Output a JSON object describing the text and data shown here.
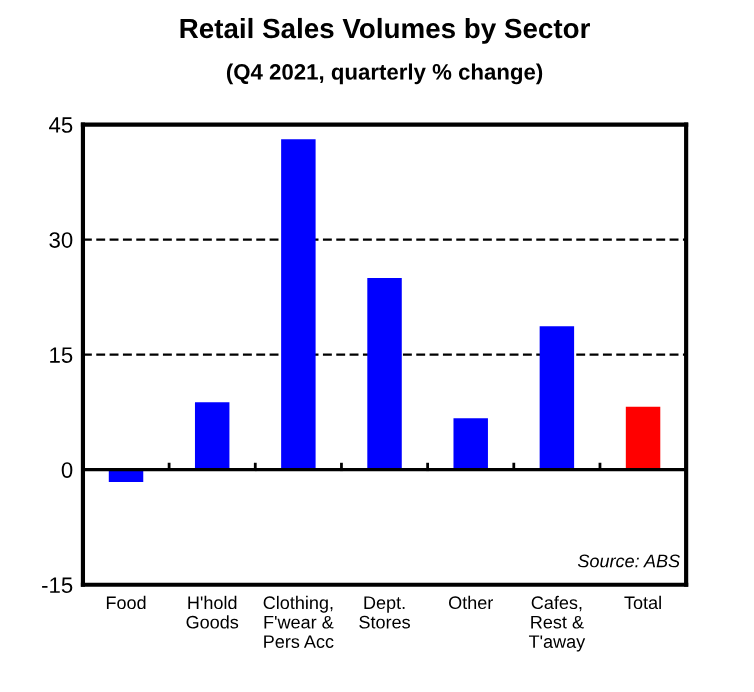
{
  "chart_data": {
    "type": "bar",
    "title": "Retail Sales Volumes by Sector",
    "subtitle": "(Q4 2021, quarterly % change)",
    "categories": [
      "Food",
      "H'hold\nGoods",
      "Clothing,\nF'wear &\nPers Acc",
      "Dept.\nStores",
      "Other",
      "Cafes,\nRest &\nT'away",
      "Total"
    ],
    "values": [
      -1.6,
      8.8,
      43.1,
      25.0,
      6.7,
      18.7,
      8.2
    ],
    "colors": [
      "#0000ff",
      "#0000ff",
      "#0000ff",
      "#0000ff",
      "#0000ff",
      "#0000ff",
      "#ff0000"
    ],
    "ylim": [
      -15,
      45
    ],
    "yticks": [
      -15,
      0,
      15,
      30,
      45
    ],
    "grid": "y",
    "ref_lines": [
      {
        "axis": "y",
        "value": 0,
        "color": "#000000",
        "line_style": "solid"
      }
    ],
    "annotations": [
      "Source: ABS"
    ]
  }
}
